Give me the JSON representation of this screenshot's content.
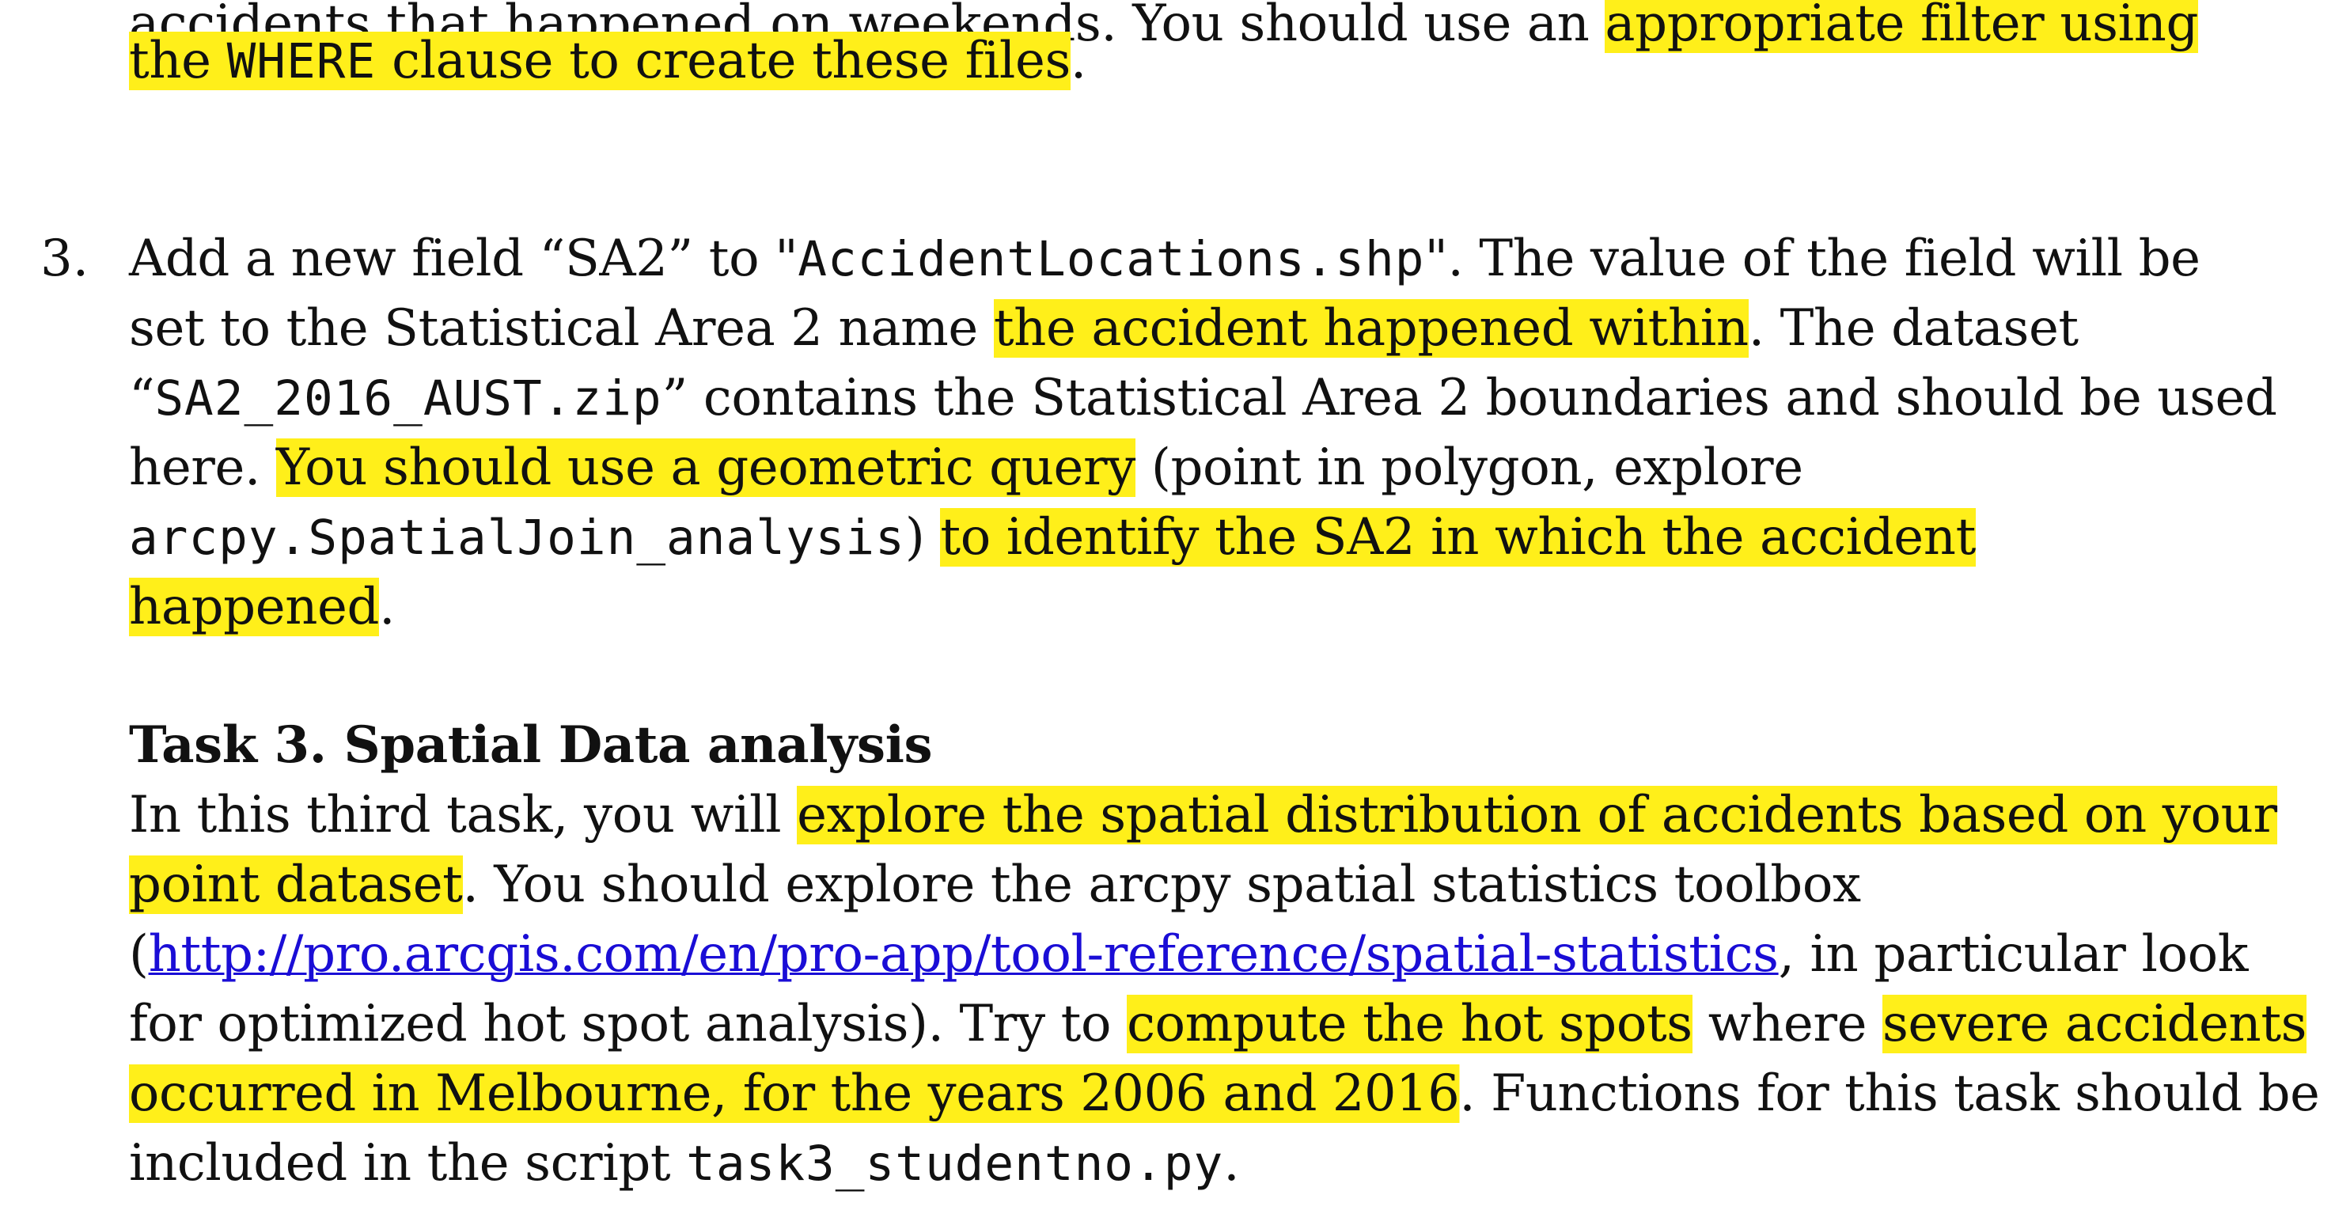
{
  "colors": {
    "highlight": "#ffef1a",
    "link": "#1a0dd6",
    "text": "#111111"
  },
  "item2_tail": {
    "l1_plain": "accidents that happened on weekends. You should use an ",
    "l1_hl": "appropriate filter using",
    "l2_hl_a": "the ",
    "l2_hl_code": "WHERE",
    "l2_hl_b": " clause to create these files",
    "l2_end": "."
  },
  "item3": {
    "number": "3.",
    "l1_a": "Add a new field “SA2” to \"",
    "l1_code": "AccidentLocations.shp",
    "l1_b": "\". The value of the field will be",
    "l2_a": "set to the Statistical Area 2 name ",
    "l2_hl": "the accident happened within",
    "l2_b": ".  The dataset",
    "l3_a": "“",
    "l3_code": "SA2_2016_AUST.zip",
    "l3_b": "” contains the Statistical Area 2 boundaries and should be used",
    "l4_a": "here. ",
    "l4_hl": "You should use a geometric query",
    "l4_b": " (point in polygon, explore",
    "l5_code": "arcpy.SpatialJoin_analysis",
    "l5_a": ") ",
    "l5_hl": "to identify the SA2 in which the accident",
    "l6_hl": "happened",
    "l6_end": "."
  },
  "task3": {
    "heading": "Task 3. Spatial Data analysis",
    "l1_a": "In this third task, you will ",
    "l1_hl": "explore the spatial distribution of accidents based on your",
    "l2_hl": "point dataset",
    "l2_b": ". You should explore the arcpy spatial statistics toolbox",
    "l3_a": "(",
    "l3_link": "http://pro.arcgis.com/en/pro-app/tool-reference/spatial-statistics",
    "l3_b": ", in particular look",
    "l4_a": "for optimized hot spot analysis). Try to ",
    "l4_hl1": "compute the hot spots",
    "l4_b": " where ",
    "l4_hl2": "severe accidents",
    "l5_hl": "occurred in Melbourne, for the years 2006 and 2016",
    "l5_b": ". Functions for this task should be",
    "l6_a": "included in the script ",
    "l6_code": "task3_studentno.py",
    "l6_end": "."
  }
}
